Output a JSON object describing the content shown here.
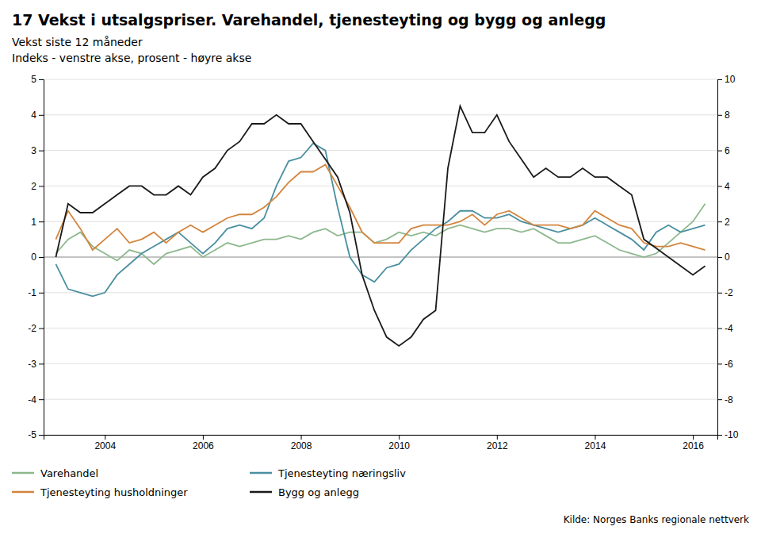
{
  "chart_data": {
    "type": "line",
    "title": "17 Vekst i utsalgspriser. Varehandel, tjenesteyting og bygg og anlegg",
    "subtitle": [
      "Vekst siste 12 måneder",
      "Indeks - venstre akse, prosent - høyre akse"
    ],
    "annotations": [
      "Kilde: Norges Banks regionale nettverk"
    ],
    "x": [
      2003.0,
      2003.25,
      2003.5,
      2003.75,
      2004.0,
      2004.25,
      2004.5,
      2004.75,
      2005.0,
      2005.25,
      2005.5,
      2005.75,
      2006.0,
      2006.25,
      2006.5,
      2006.75,
      2007.0,
      2007.25,
      2007.5,
      2007.75,
      2008.0,
      2008.25,
      2008.5,
      2008.75,
      2009.0,
      2009.25,
      2009.5,
      2009.75,
      2010.0,
      2010.25,
      2010.5,
      2010.75,
      2011.0,
      2011.25,
      2011.5,
      2011.75,
      2012.0,
      2012.25,
      2012.5,
      2012.75,
      2013.0,
      2013.25,
      2013.5,
      2013.75,
      2014.0,
      2014.25,
      2014.5,
      2014.75,
      2015.0,
      2015.25,
      2015.5,
      2015.75,
      2016.0,
      2016.25
    ],
    "series": [
      {
        "name": "Varehandel",
        "color": "#8db88d",
        "values": [
          0.1,
          0.5,
          0.7,
          0.3,
          0.1,
          -0.1,
          0.2,
          0.1,
          -0.2,
          0.1,
          0.2,
          0.3,
          0.0,
          0.2,
          0.4,
          0.3,
          0.4,
          0.5,
          0.5,
          0.6,
          0.5,
          0.7,
          0.8,
          0.6,
          0.7,
          0.7,
          0.4,
          0.5,
          0.7,
          0.6,
          0.7,
          0.6,
          0.8,
          0.9,
          0.8,
          0.7,
          0.8,
          0.8,
          0.7,
          0.8,
          0.6,
          0.4,
          0.4,
          0.5,
          0.6,
          0.4,
          0.2,
          0.1,
          0.0,
          0.1,
          0.4,
          0.7,
          1.0,
          1.5
        ]
      },
      {
        "name": "Tjenesteyting næringsliv",
        "color": "#4a8fa0",
        "values": [
          -0.2,
          -0.9,
          -1.0,
          -1.1,
          -1.0,
          -0.5,
          -0.2,
          0.1,
          0.3,
          0.5,
          0.7,
          0.4,
          0.1,
          0.4,
          0.8,
          0.9,
          0.8,
          1.1,
          2.0,
          2.7,
          2.8,
          3.2,
          3.0,
          1.4,
          0.0,
          -0.5,
          -0.7,
          -0.3,
          -0.2,
          0.2,
          0.5,
          0.8,
          1.0,
          1.3,
          1.3,
          1.1,
          1.1,
          1.2,
          1.0,
          0.9,
          0.8,
          0.7,
          0.8,
          0.9,
          1.1,
          0.9,
          0.7,
          0.5,
          0.2,
          0.7,
          0.9,
          0.7,
          0.8,
          0.9
        ]
      },
      {
        "name": "Tjenesteyting husholdninger",
        "color": "#d4843c",
        "values": [
          0.5,
          1.3,
          0.8,
          0.2,
          0.5,
          0.8,
          0.4,
          0.5,
          0.7,
          0.4,
          0.7,
          0.9,
          0.7,
          0.9,
          1.1,
          1.2,
          1.2,
          1.4,
          1.7,
          2.1,
          2.4,
          2.4,
          2.6,
          2.0,
          1.4,
          0.7,
          0.4,
          0.4,
          0.4,
          0.8,
          0.9,
          0.9,
          0.9,
          1.0,
          1.2,
          0.9,
          1.2,
          1.3,
          1.1,
          0.9,
          0.9,
          0.9,
          0.8,
          0.9,
          1.3,
          1.1,
          0.9,
          0.8,
          0.4,
          0.3,
          0.3,
          0.4,
          0.3,
          0.2
        ]
      },
      {
        "name": "Bygg og anlegg",
        "color": "#1a1a1a",
        "axis": "y2",
        "values": [
          0.0,
          3.0,
          2.5,
          2.5,
          3.0,
          3.5,
          4.0,
          4.0,
          3.5,
          3.5,
          4.0,
          3.5,
          4.5,
          5.0,
          6.0,
          6.5,
          7.5,
          7.5,
          8.0,
          7.5,
          7.5,
          6.5,
          5.5,
          4.5,
          2.5,
          -1.0,
          -3.0,
          -4.5,
          -5.0,
          -4.5,
          -3.5,
          -3.0,
          5.0,
          8.5,
          7.0,
          7.0,
          8.0,
          6.5,
          5.5,
          4.5,
          5.0,
          4.5,
          4.5,
          5.0,
          4.5,
          4.5,
          4.0,
          3.5,
          1.0,
          0.5,
          0.0,
          -0.5,
          -1.0,
          -0.5
        ]
      }
    ],
    "xlim": [
      2002.75,
      2016.5
    ],
    "xticks": [
      2004,
      2006,
      2008,
      2010,
      2012,
      2014,
      2016
    ],
    "ylim": [
      -5,
      5
    ],
    "yticks": [
      -5,
      -4,
      -3,
      -2,
      -1,
      0,
      1,
      2,
      3,
      4,
      5
    ],
    "y2lim": [
      -10,
      10
    ],
    "y2ticks": [
      -10,
      -8,
      -6,
      -4,
      -2,
      0,
      2,
      4,
      6,
      8,
      10
    ],
    "grid": true,
    "legend": "bottom"
  }
}
